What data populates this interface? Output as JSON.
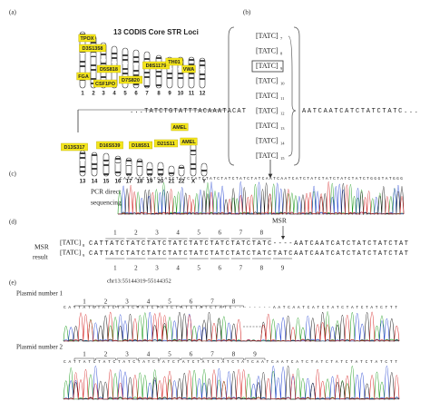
{
  "panel_a": {
    "label": "(a)",
    "title": "13 CODIS Core STR Loci",
    "chromosomes_row1": [
      "1",
      "2",
      "3",
      "4",
      "5",
      "6",
      "7",
      "8",
      "9",
      "10",
      "11",
      "12"
    ],
    "chromosomes_row2": [
      "13",
      "14",
      "15",
      "16",
      "17",
      "18",
      "19",
      "20",
      "21",
      "22",
      "X",
      "Y"
    ],
    "loci": [
      "TPOX",
      "D3S1358",
      "FGA",
      "D5S818",
      "CSF1PO",
      "D8S1179",
      "D7S820",
      "TH01",
      "VWA",
      "D13S317",
      "D16S539",
      "D18S51",
      "D21S11",
      "AMEL",
      "AMEL"
    ]
  },
  "panel_b": {
    "label": "(b)",
    "repeats": [
      {
        "unit": "[TATC]",
        "count": "7"
      },
      {
        "unit": "[TATC]",
        "count": "8"
      },
      {
        "unit": "[TATC]",
        "count": "9"
      },
      {
        "unit": "[TATC]",
        "count": "10"
      },
      {
        "unit": "[TATC]",
        "count": "11"
      },
      {
        "unit": "[TATC]",
        "count": "12"
      },
      {
        "unit": "[TATC]",
        "count": "13"
      },
      {
        "unit": "[TATC]",
        "count": "14"
      },
      {
        "unit": "[TATC]",
        "count": "15"
      }
    ],
    "flank_left": "...TATCTGTATTTACAAATACAT",
    "flank_right": "AATCAATCATCTATCTATC..."
  },
  "panel_c": {
    "label": "(c)",
    "method": [
      "PCR direct",
      "sequencing"
    ],
    "basecalls": "CATTATCTATCTATCTATCTATCTATCTATCTATCTATCAATCAATCATCTATCTATCTATCTATCTGGGTATGGG"
  },
  "panel_d": {
    "label": "(d)",
    "marker": "MSR",
    "method": [
      "MSR",
      "result"
    ],
    "alleles": [
      {
        "unit": "[TATC]",
        "count": "8",
        "sequence": "CATTATCTATCTATCTATCTATCTATCTATCTATC----AATCAATCATCTATCTATCTAT"
      },
      {
        "unit": "[TATC]",
        "count": "9",
        "sequence": "CATTATCTATCTATCTATCTATCTATCTATCTATCTATCAATCAATCATCTATCTATCTAT"
      }
    ],
    "repeat_numbers_top": [
      "1",
      "2",
      "3",
      "4",
      "5",
      "6",
      "7",
      "8"
    ],
    "repeat_numbers_bottom": [
      "1",
      "2",
      "3",
      "4",
      "5",
      "6",
      "7",
      "8",
      "9"
    ],
    "locus": "chr13:55144319-55144352"
  },
  "panel_e": {
    "label": "(e)",
    "plasmids": [
      {
        "name": "Plasmid number 1",
        "repeat_numbers": [
          "1",
          "2",
          "3",
          "4",
          "5",
          "6",
          "7",
          "8"
        ],
        "basecalls": "CATTATCTATCTATCTATCTATCTATCTATCTATC--------AATCAATCATCTATCTATCTATCTTT"
      },
      {
        "name": "Plasmid number 2",
        "repeat_numbers": [
          "1",
          "2",
          "3",
          "4",
          "5",
          "6",
          "7",
          "8",
          "9"
        ],
        "basecalls": "CATTATCTATCTATCTATCTATCTATCTATCTATCTATCAATCAATCATCTATCTATCTATCTATCTT"
      }
    ]
  }
}
